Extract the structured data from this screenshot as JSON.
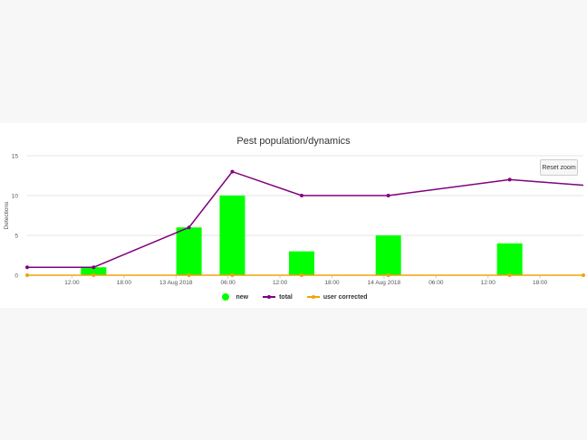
{
  "chart_data": {
    "type": "bar",
    "title": "Pest population/dynamics",
    "ylabel": "Detections",
    "ylim": [
      0,
      15
    ],
    "yticks": [
      "0",
      "5",
      "10",
      "15"
    ],
    "xlim": [
      "2018-08-12T06:50",
      "2018-08-14T23:00"
    ],
    "xticks": [
      {
        "t": "2018-08-12T12:00",
        "label": "12:00"
      },
      {
        "t": "2018-08-12T18:00",
        "label": "18:00"
      },
      {
        "t": "2018-08-13T00:00",
        "label": "13 Aug 2018"
      },
      {
        "t": "2018-08-13T06:00",
        "label": "06:00"
      },
      {
        "t": "2018-08-13T12:00",
        "label": "12:00"
      },
      {
        "t": "2018-08-13T18:00",
        "label": "18:00"
      },
      {
        "t": "2018-08-14T00:00",
        "label": "14 Aug 2018"
      },
      {
        "t": "2018-08-14T06:00",
        "label": "06:00"
      },
      {
        "t": "2018-08-14T12:00",
        "label": "12:00"
      },
      {
        "t": "2018-08-14T18:00",
        "label": "18:00"
      }
    ],
    "grid": true,
    "legend_position": "bottom-center",
    "series": [
      {
        "name": "new",
        "type": "bar",
        "color": "#00ff00",
        "points": [
          {
            "t": "2018-08-12T14:30",
            "y": 1
          },
          {
            "t": "2018-08-13T01:30",
            "y": 6
          },
          {
            "t": "2018-08-13T06:30",
            "y": 10
          },
          {
            "t": "2018-08-13T14:30",
            "y": 3
          },
          {
            "t": "2018-08-14T00:30",
            "y": 5
          },
          {
            "t": "2018-08-14T14:30",
            "y": 4
          }
        ]
      },
      {
        "name": "total",
        "type": "line",
        "color": "#800080",
        "points": [
          {
            "t": "2018-08-12T06:50",
            "y": 1
          },
          {
            "t": "2018-08-12T14:30",
            "y": 1
          },
          {
            "t": "2018-08-13T01:30",
            "y": 6
          },
          {
            "t": "2018-08-13T06:30",
            "y": 13
          },
          {
            "t": "2018-08-13T14:30",
            "y": 10
          },
          {
            "t": "2018-08-14T00:30",
            "y": 10
          },
          {
            "t": "2018-08-14T14:30",
            "y": 12
          },
          {
            "t": "2018-08-14T23:00",
            "y": 11.3
          }
        ]
      },
      {
        "name": "user corrected",
        "type": "line",
        "color": "#f0a30a",
        "points": [
          {
            "t": "2018-08-12T06:50",
            "y": 0
          },
          {
            "t": "2018-08-12T14:30",
            "y": 0
          },
          {
            "t": "2018-08-13T01:30",
            "y": 0
          },
          {
            "t": "2018-08-13T06:30",
            "y": 0
          },
          {
            "t": "2018-08-13T14:30",
            "y": 0
          },
          {
            "t": "2018-08-14T00:30",
            "y": 0
          },
          {
            "t": "2018-08-14T14:30",
            "y": 0
          },
          {
            "t": "2018-08-14T23:00",
            "y": 0
          }
        ]
      }
    ]
  },
  "controls": {
    "reset_zoom_label": "Reset zoom"
  }
}
